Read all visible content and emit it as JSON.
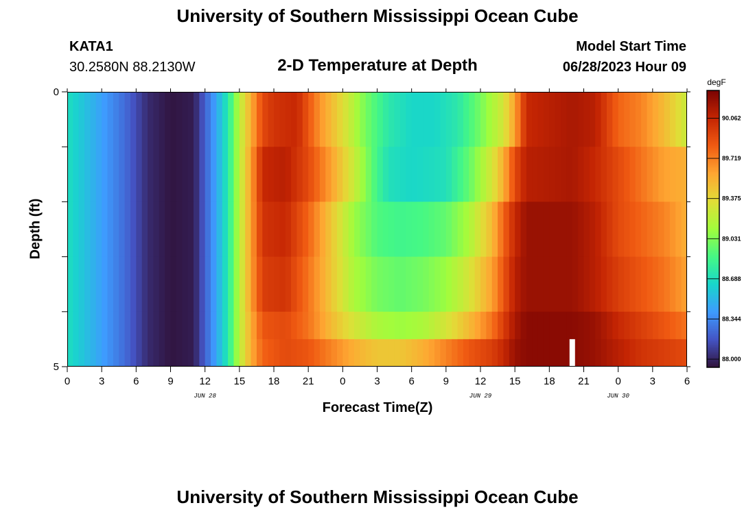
{
  "header": {
    "title": "University of Southern Mississippi Ocean Cube",
    "station_id": "KATA1",
    "station_coords": "30.2580N  88.2130W",
    "subtitle": "2-D Temperature at Depth",
    "model_label": "Model Start Time",
    "model_time": "06/28/2023 Hour 09"
  },
  "footer": {
    "title": "University of Southern Mississippi Ocean Cube"
  },
  "chart_data": {
    "type": "heatmap",
    "title": "2-D Temperature at Depth",
    "xlabel": "Forecast Time(Z)",
    "ylabel": "Depth (ft)",
    "x_tick_labels": [
      "0",
      "3",
      "6",
      "9",
      "12",
      "15",
      "18",
      "21",
      "0",
      "3",
      "6",
      "9",
      "12",
      "15",
      "18",
      "21",
      "0",
      "3",
      "6"
    ],
    "x_date_labels": [
      "JUN 28",
      "JUN 29",
      "JUN 30"
    ],
    "y_tick_labels": [
      "0",
      "5"
    ],
    "ylim": [
      0,
      5
    ],
    "xlim_hours": [
      0,
      54
    ],
    "colorbar": {
      "unit": "degF",
      "min": 87.93,
      "max": 90.3,
      "tick_labels": [
        "90.062",
        "89.719",
        "89.375",
        "89.031",
        "88.688",
        "88.344",
        "88.000"
      ],
      "colors": [
        "#30123b",
        "#4454c4",
        "#3e9bfe",
        "#18d6cb",
        "#46f884",
        "#a2fc3c",
        "#e1dd37",
        "#fea632",
        "#f05b12",
        "#c42503",
        "#7a0403"
      ]
    },
    "depth_bands": [
      {
        "from_ft": 0,
        "to_ft": 1,
        "keyframes": [
          [
            0,
            88.69
          ],
          [
            5,
            88.25
          ],
          [
            7,
            88.02
          ],
          [
            9,
            87.94
          ],
          [
            11,
            87.97
          ],
          [
            13,
            88.45
          ],
          [
            14,
            88.75
          ],
          [
            15,
            89.2
          ],
          [
            16,
            89.55
          ],
          [
            17,
            89.9
          ],
          [
            18,
            90.0
          ],
          [
            20,
            90.05
          ],
          [
            22,
            89.65
          ],
          [
            24,
            89.35
          ],
          [
            26,
            89.0
          ],
          [
            28,
            88.75
          ],
          [
            30,
            88.65
          ],
          [
            32,
            88.65
          ],
          [
            34,
            88.75
          ],
          [
            36,
            89.0
          ],
          [
            38,
            89.3
          ],
          [
            39,
            89.6
          ],
          [
            40,
            90.05
          ],
          [
            44,
            90.15
          ],
          [
            46,
            90.1
          ],
          [
            48,
            89.8
          ],
          [
            50,
            89.7
          ],
          [
            52,
            89.5
          ],
          [
            54,
            89.25
          ]
        ]
      },
      {
        "from_ft": 1,
        "to_ft": 2,
        "keyframes": [
          [
            0,
            88.69
          ],
          [
            5,
            88.25
          ],
          [
            7,
            88.02
          ],
          [
            9,
            87.94
          ],
          [
            11,
            87.97
          ],
          [
            13,
            88.45
          ],
          [
            14,
            88.75
          ],
          [
            15,
            89.2
          ],
          [
            16,
            89.6
          ],
          [
            17,
            90.05
          ],
          [
            19,
            90.1
          ],
          [
            21,
            89.9
          ],
          [
            23,
            89.6
          ],
          [
            25,
            89.25
          ],
          [
            27,
            88.85
          ],
          [
            28,
            88.7
          ],
          [
            30,
            88.65
          ],
          [
            33,
            88.7
          ],
          [
            35,
            88.95
          ],
          [
            37,
            89.3
          ],
          [
            38,
            89.55
          ],
          [
            39,
            89.9
          ],
          [
            40,
            90.1
          ],
          [
            44,
            90.15
          ],
          [
            46,
            90.05
          ],
          [
            48,
            89.9
          ],
          [
            50,
            89.75
          ],
          [
            52,
            89.6
          ],
          [
            54,
            89.55
          ]
        ]
      },
      {
        "from_ft": 2,
        "to_ft": 3,
        "keyframes": [
          [
            0,
            88.69
          ],
          [
            5,
            88.25
          ],
          [
            7,
            88.02
          ],
          [
            9,
            87.94
          ],
          [
            11,
            87.97
          ],
          [
            13,
            88.45
          ],
          [
            14,
            88.75
          ],
          [
            15,
            89.2
          ],
          [
            16,
            89.6
          ],
          [
            17,
            90.0
          ],
          [
            19,
            90.05
          ],
          [
            21,
            89.8
          ],
          [
            23,
            89.45
          ],
          [
            25,
            89.1
          ],
          [
            27,
            88.9
          ],
          [
            29,
            88.85
          ],
          [
            31,
            88.88
          ],
          [
            33,
            88.95
          ],
          [
            35,
            89.15
          ],
          [
            37,
            89.5
          ],
          [
            38,
            89.8
          ],
          [
            39,
            90.05
          ],
          [
            40,
            90.2
          ],
          [
            44,
            90.2
          ],
          [
            46,
            90.1
          ],
          [
            48,
            89.9
          ],
          [
            50,
            89.8
          ],
          [
            52,
            89.7
          ],
          [
            54,
            89.55
          ]
        ]
      },
      {
        "from_ft": 3,
        "to_ft": 4,
        "keyframes": [
          [
            0,
            88.69
          ],
          [
            5,
            88.25
          ],
          [
            7,
            88.02
          ],
          [
            9,
            87.94
          ],
          [
            11,
            87.97
          ],
          [
            13,
            88.45
          ],
          [
            14,
            88.75
          ],
          [
            15,
            89.2
          ],
          [
            16,
            89.6
          ],
          [
            17,
            89.95
          ],
          [
            19,
            90.0
          ],
          [
            21,
            89.75
          ],
          [
            23,
            89.45
          ],
          [
            25,
            89.15
          ],
          [
            27,
            89.0
          ],
          [
            29,
            88.95
          ],
          [
            31,
            89.0
          ],
          [
            33,
            89.1
          ],
          [
            35,
            89.3
          ],
          [
            37,
            89.6
          ],
          [
            38,
            89.85
          ],
          [
            39,
            90.1
          ],
          [
            40,
            90.2
          ],
          [
            44,
            90.2
          ],
          [
            46,
            90.1
          ],
          [
            48,
            89.95
          ],
          [
            50,
            89.85
          ],
          [
            52,
            89.75
          ],
          [
            54,
            89.6
          ]
        ]
      },
      {
        "from_ft": 4,
        "to_ft": 4.5,
        "keyframes": [
          [
            0,
            88.69
          ],
          [
            5,
            88.25
          ],
          [
            7,
            88.02
          ],
          [
            9,
            87.94
          ],
          [
            11,
            87.97
          ],
          [
            13,
            88.45
          ],
          [
            14,
            88.75
          ],
          [
            15,
            89.2
          ],
          [
            16,
            89.55
          ],
          [
            17,
            89.85
          ],
          [
            19,
            89.9
          ],
          [
            21,
            89.75
          ],
          [
            23,
            89.5
          ],
          [
            25,
            89.3
          ],
          [
            27,
            89.15
          ],
          [
            29,
            89.1
          ],
          [
            31,
            89.15
          ],
          [
            33,
            89.3
          ],
          [
            35,
            89.5
          ],
          [
            37,
            89.75
          ],
          [
            38,
            89.95
          ],
          [
            39,
            90.15
          ],
          [
            40,
            90.25
          ],
          [
            44,
            90.25
          ],
          [
            46,
            90.2
          ],
          [
            48,
            90.05
          ],
          [
            50,
            89.95
          ],
          [
            52,
            89.85
          ],
          [
            54,
            89.75
          ]
        ]
      },
      {
        "from_ft": 4.5,
        "to_ft": 5,
        "keyframes": [
          [
            0,
            88.69
          ],
          [
            5,
            88.25
          ],
          [
            7,
            88.02
          ],
          [
            9,
            87.94
          ],
          [
            11,
            87.97
          ],
          [
            13,
            88.45
          ],
          [
            14,
            88.75
          ],
          [
            15,
            89.2
          ],
          [
            16,
            89.55
          ],
          [
            17,
            89.8
          ],
          [
            19,
            89.9
          ],
          [
            21,
            89.85
          ],
          [
            23,
            89.7
          ],
          [
            25,
            89.55
          ],
          [
            27,
            89.45
          ],
          [
            29,
            89.45
          ],
          [
            31,
            89.55
          ],
          [
            33,
            89.7
          ],
          [
            35,
            89.85
          ],
          [
            37,
            89.95
          ],
          [
            38,
            90.05
          ],
          [
            39,
            90.2
          ],
          [
            40,
            90.25
          ],
          [
            44,
            90.25
          ],
          [
            46,
            90.2
          ],
          [
            48,
            90.1
          ],
          [
            50,
            90.0
          ],
          [
            52,
            89.95
          ],
          [
            54,
            89.9
          ]
        ]
      }
    ],
    "missing_data": [
      {
        "hour": 44,
        "depth_from_ft": 4.5,
        "depth_to_ft": 5
      }
    ]
  }
}
